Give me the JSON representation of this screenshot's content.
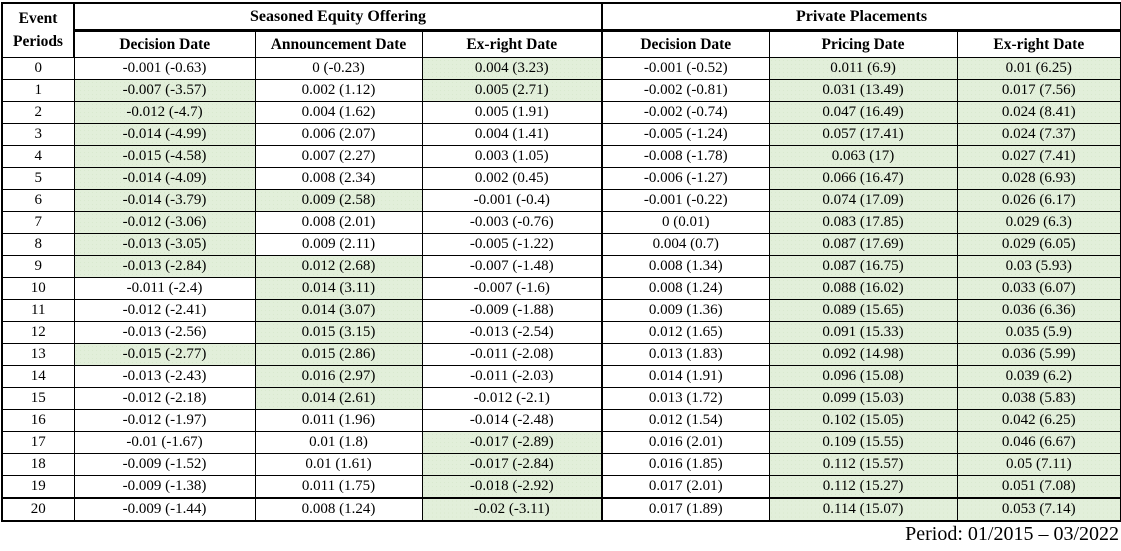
{
  "colors": {
    "highlight": "#e2efda",
    "border": "#000000"
  },
  "table": {
    "corner_header": {
      "line1": "Event",
      "line2": "Periods"
    },
    "groups": [
      {
        "label": "Seasoned Equity Offering",
        "columns": [
          "Decision Date",
          "Announcement Date",
          "Ex-right Date"
        ]
      },
      {
        "label": "Private Placements",
        "columns": [
          "Decision Date",
          "Pricing Date",
          "Ex-right Date"
        ]
      }
    ],
    "rows": [
      {
        "period": "0",
        "cells": [
          {
            "v": "-0.001 (-0.63)",
            "h": false
          },
          {
            "v": "0 (-0.23)",
            "h": false
          },
          {
            "v": "0.004 (3.23)",
            "h": true
          },
          {
            "v": "-0.001 (-0.52)",
            "h": false
          },
          {
            "v": "0.011 (6.9)",
            "h": true
          },
          {
            "v": "0.01 (6.25)",
            "h": true
          }
        ]
      },
      {
        "period": "1",
        "cells": [
          {
            "v": "-0.007 (-3.57)",
            "h": true
          },
          {
            "v": "0.002 (1.12)",
            "h": false
          },
          {
            "v": "0.005 (2.71)",
            "h": true
          },
          {
            "v": "-0.002 (-0.81)",
            "h": false
          },
          {
            "v": "0.031 (13.49)",
            "h": true
          },
          {
            "v": "0.017 (7.56)",
            "h": true
          }
        ]
      },
      {
        "period": "2",
        "cells": [
          {
            "v": "-0.012 (-4.7)",
            "h": true
          },
          {
            "v": "0.004 (1.62)",
            "h": false
          },
          {
            "v": "0.005 (1.91)",
            "h": false
          },
          {
            "v": "-0.002 (-0.74)",
            "h": false
          },
          {
            "v": "0.047 (16.49)",
            "h": true
          },
          {
            "v": "0.024 (8.41)",
            "h": true
          }
        ]
      },
      {
        "period": "3",
        "cells": [
          {
            "v": "-0.014 (-4.99)",
            "h": true
          },
          {
            "v": "0.006 (2.07)",
            "h": false
          },
          {
            "v": "0.004 (1.41)",
            "h": false
          },
          {
            "v": "-0.005 (-1.24)",
            "h": false
          },
          {
            "v": "0.057 (17.41)",
            "h": true
          },
          {
            "v": "0.024 (7.37)",
            "h": true
          }
        ]
      },
      {
        "period": "4",
        "cells": [
          {
            "v": "-0.015 (-4.58)",
            "h": true
          },
          {
            "v": "0.007 (2.27)",
            "h": false
          },
          {
            "v": "0.003 (1.05)",
            "h": false
          },
          {
            "v": "-0.008 (-1.78)",
            "h": false
          },
          {
            "v": "0.063 (17)",
            "h": true
          },
          {
            "v": "0.027 (7.41)",
            "h": true
          }
        ]
      },
      {
        "period": "5",
        "cells": [
          {
            "v": "-0.014 (-4.09)",
            "h": true
          },
          {
            "v": "0.008 (2.34)",
            "h": false
          },
          {
            "v": "0.002 (0.45)",
            "h": false
          },
          {
            "v": "-0.006 (-1.27)",
            "h": false
          },
          {
            "v": "0.066 (16.47)",
            "h": true
          },
          {
            "v": "0.028 (6.93)",
            "h": true
          }
        ]
      },
      {
        "period": "6",
        "cells": [
          {
            "v": "-0.014 (-3.79)",
            "h": true
          },
          {
            "v": "0.009 (2.58)",
            "h": true
          },
          {
            "v": "-0.001 (-0.4)",
            "h": false
          },
          {
            "v": "-0.001 (-0.22)",
            "h": false
          },
          {
            "v": "0.074 (17.09)",
            "h": true
          },
          {
            "v": "0.026 (6.17)",
            "h": true
          }
        ]
      },
      {
        "period": "7",
        "cells": [
          {
            "v": "-0.012 (-3.06)",
            "h": true
          },
          {
            "v": "0.008 (2.01)",
            "h": false
          },
          {
            "v": "-0.003 (-0.76)",
            "h": false
          },
          {
            "v": "0 (0.01)",
            "h": false
          },
          {
            "v": "0.083 (17.85)",
            "h": true
          },
          {
            "v": "0.029 (6.3)",
            "h": true
          }
        ]
      },
      {
        "period": "8",
        "cells": [
          {
            "v": "-0.013 (-3.05)",
            "h": true
          },
          {
            "v": "0.009 (2.11)",
            "h": false
          },
          {
            "v": "-0.005 (-1.22)",
            "h": false
          },
          {
            "v": "0.004 (0.7)",
            "h": false
          },
          {
            "v": "0.087 (17.69)",
            "h": true
          },
          {
            "v": "0.029 (6.05)",
            "h": true
          }
        ]
      },
      {
        "period": "9",
        "cells": [
          {
            "v": "-0.013 (-2.84)",
            "h": true
          },
          {
            "v": "0.012 (2.68)",
            "h": true
          },
          {
            "v": "-0.007 (-1.48)",
            "h": false
          },
          {
            "v": "0.008 (1.34)",
            "h": false
          },
          {
            "v": "0.087 (16.75)",
            "h": true
          },
          {
            "v": "0.03 (5.93)",
            "h": true
          }
        ]
      },
      {
        "period": "10",
        "cells": [
          {
            "v": "-0.011 (-2.4)",
            "h": false
          },
          {
            "v": "0.014 (3.11)",
            "h": true
          },
          {
            "v": "-0.007 (-1.6)",
            "h": false
          },
          {
            "v": "0.008 (1.24)",
            "h": false
          },
          {
            "v": "0.088 (16.02)",
            "h": true
          },
          {
            "v": "0.033 (6.07)",
            "h": true
          }
        ]
      },
      {
        "period": "11",
        "cells": [
          {
            "v": "-0.012 (-2.41)",
            "h": false
          },
          {
            "v": "0.014 (3.07)",
            "h": true
          },
          {
            "v": "-0.009 (-1.88)",
            "h": false
          },
          {
            "v": "0.009 (1.36)",
            "h": false
          },
          {
            "v": "0.089 (15.65)",
            "h": true
          },
          {
            "v": "0.036 (6.36)",
            "h": true
          }
        ]
      },
      {
        "period": "12",
        "cells": [
          {
            "v": "-0.013 (-2.56)",
            "h": false
          },
          {
            "v": "0.015 (3.15)",
            "h": true
          },
          {
            "v": "-0.013 (-2.54)",
            "h": false
          },
          {
            "v": "0.012 (1.65)",
            "h": false
          },
          {
            "v": "0.091 (15.33)",
            "h": true
          },
          {
            "v": "0.035 (5.9)",
            "h": true
          }
        ]
      },
      {
        "period": "13",
        "cells": [
          {
            "v": "-0.015 (-2.77)",
            "h": true
          },
          {
            "v": "0.015 (2.86)",
            "h": true
          },
          {
            "v": "-0.011 (-2.08)",
            "h": false
          },
          {
            "v": "0.013 (1.83)",
            "h": false
          },
          {
            "v": "0.092 (14.98)",
            "h": true
          },
          {
            "v": "0.036 (5.99)",
            "h": true
          }
        ]
      },
      {
        "period": "14",
        "cells": [
          {
            "v": "-0.013 (-2.43)",
            "h": false
          },
          {
            "v": "0.016 (2.97)",
            "h": true
          },
          {
            "v": "-0.011 (-2.03)",
            "h": false
          },
          {
            "v": "0.014 (1.91)",
            "h": false
          },
          {
            "v": "0.096 (15.08)",
            "h": true
          },
          {
            "v": "0.039 (6.2)",
            "h": true
          }
        ]
      },
      {
        "period": "15",
        "cells": [
          {
            "v": "-0.012 (-2.18)",
            "h": false
          },
          {
            "v": "0.014 (2.61)",
            "h": true
          },
          {
            "v": "-0.012 (-2.1)",
            "h": false
          },
          {
            "v": "0.013 (1.72)",
            "h": false
          },
          {
            "v": "0.099 (15.03)",
            "h": true
          },
          {
            "v": "0.038 (5.83)",
            "h": true
          }
        ]
      },
      {
        "period": "16",
        "cells": [
          {
            "v": "-0.012 (-1.97)",
            "h": false
          },
          {
            "v": "0.011 (1.96)",
            "h": false
          },
          {
            "v": "-0.014 (-2.48)",
            "h": false
          },
          {
            "v": "0.012 (1.54)",
            "h": false
          },
          {
            "v": "0.102 (15.05)",
            "h": true
          },
          {
            "v": "0.042 (6.25)",
            "h": true
          }
        ]
      },
      {
        "period": "17",
        "cells": [
          {
            "v": "-0.01 (-1.67)",
            "h": false
          },
          {
            "v": "0.01 (1.8)",
            "h": false
          },
          {
            "v": "-0.017 (-2.89)",
            "h": true
          },
          {
            "v": "0.016 (2.01)",
            "h": false
          },
          {
            "v": "0.109 (15.55)",
            "h": true
          },
          {
            "v": "0.046 (6.67)",
            "h": true
          }
        ]
      },
      {
        "period": "18",
        "cells": [
          {
            "v": "-0.009 (-1.52)",
            "h": false
          },
          {
            "v": "0.01 (1.61)",
            "h": false
          },
          {
            "v": "-0.017 (-2.84)",
            "h": true
          },
          {
            "v": "0.016 (1.85)",
            "h": false
          },
          {
            "v": "0.112 (15.57)",
            "h": true
          },
          {
            "v": "0.05 (7.11)",
            "h": true
          }
        ]
      },
      {
        "period": "19",
        "cells": [
          {
            "v": "-0.009 (-1.38)",
            "h": false
          },
          {
            "v": "0.011 (1.75)",
            "h": false
          },
          {
            "v": "-0.018 (-2.92)",
            "h": true
          },
          {
            "v": "0.017 (2.01)",
            "h": false
          },
          {
            "v": "0.112 (15.27)",
            "h": true
          },
          {
            "v": "0.051 (7.08)",
            "h": true
          }
        ]
      },
      {
        "period": "20",
        "cells": [
          {
            "v": "-0.009 (-1.44)",
            "h": false
          },
          {
            "v": "0.008 (1.24)",
            "h": false
          },
          {
            "v": "-0.02 (-3.11)",
            "h": true
          },
          {
            "v": "0.017 (1.89)",
            "h": false
          },
          {
            "v": "0.114 (15.07)",
            "h": true
          },
          {
            "v": "0.053 (7.14)",
            "h": true
          }
        ]
      }
    ]
  },
  "footer": {
    "text": "Period: 01/2015 – 03/2022"
  }
}
